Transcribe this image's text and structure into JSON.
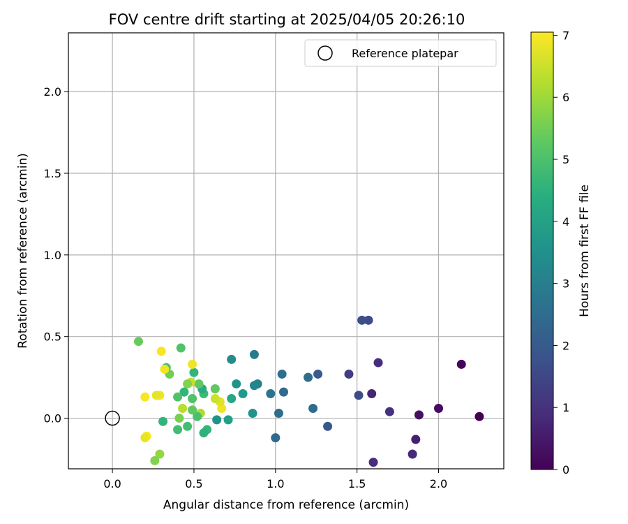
{
  "chart_data": {
    "type": "scatter",
    "title": "FOV centre drift starting at 2025/04/05 20:26:10",
    "xlabel": "Angular distance from reference (arcmin)",
    "ylabel": "Rotation from reference (arcmin)",
    "xlim": [
      -0.27,
      2.4
    ],
    "ylim": [
      -0.31,
      2.36
    ],
    "xticks": [
      0.0,
      0.5,
      1.0,
      1.5,
      2.0
    ],
    "xtick_labels": [
      "0.0",
      "0.5",
      "1.0",
      "1.5",
      "2.0"
    ],
    "yticks": [
      0.0,
      0.5,
      1.0,
      1.5,
      2.0
    ],
    "ytick_labels": [
      "0.0",
      "0.5",
      "1.0",
      "1.5",
      "2.0"
    ],
    "grid": true,
    "legend": {
      "placement": "top-right",
      "entries": [
        "Reference platepar"
      ]
    },
    "reference_point": {
      "x": 0.0,
      "y": 0.0,
      "label": "Reference platepar"
    },
    "colorbar": {
      "label": "Hours from first FF file",
      "colormap": "viridis",
      "range": [
        0,
        7.05
      ],
      "ticks": [
        0,
        1,
        2,
        3,
        4,
        5,
        6,
        7
      ],
      "tick_labels": [
        "0",
        "1",
        "2",
        "3",
        "4",
        "5",
        "6",
        "7"
      ]
    },
    "points": [
      {
        "x": 2.25,
        "y": 0.01,
        "hours": 0.0
      },
      {
        "x": 2.14,
        "y": 0.33,
        "hours": 0.1
      },
      {
        "x": 2.0,
        "y": 0.06,
        "hours": 0.2
      },
      {
        "x": 1.88,
        "y": 0.02,
        "hours": 0.3
      },
      {
        "x": 1.86,
        "y": -0.13,
        "hours": 0.6
      },
      {
        "x": 1.84,
        "y": -0.22,
        "hours": 0.8
      },
      {
        "x": 1.7,
        "y": 0.04,
        "hours": 1.0
      },
      {
        "x": 1.63,
        "y": 0.34,
        "hours": 0.9
      },
      {
        "x": 1.6,
        "y": -0.27,
        "hours": 0.9
      },
      {
        "x": 1.59,
        "y": 0.15,
        "hours": 0.7
      },
      {
        "x": 1.57,
        "y": 0.6,
        "hours": 1.6
      },
      {
        "x": 1.53,
        "y": 0.6,
        "hours": 1.7
      },
      {
        "x": 1.51,
        "y": 0.14,
        "hours": 1.6
      },
      {
        "x": 1.45,
        "y": 0.27,
        "hours": 1.3
      },
      {
        "x": 1.32,
        "y": -0.05,
        "hours": 1.9
      },
      {
        "x": 1.26,
        "y": 0.27,
        "hours": 2.0
      },
      {
        "x": 1.23,
        "y": 0.06,
        "hours": 2.4
      },
      {
        "x": 1.2,
        "y": 0.25,
        "hours": 2.5
      },
      {
        "x": 1.05,
        "y": 0.16,
        "hours": 2.4
      },
      {
        "x": 1.04,
        "y": 0.27,
        "hours": 2.6
      },
      {
        "x": 1.02,
        "y": 0.03,
        "hours": 2.5
      },
      {
        "x": 1.0,
        "y": -0.12,
        "hours": 2.4
      },
      {
        "x": 0.97,
        "y": 0.15,
        "hours": 2.7
      },
      {
        "x": 0.89,
        "y": 0.21,
        "hours": 3.1
      },
      {
        "x": 0.87,
        "y": 0.2,
        "hours": 3.2
      },
      {
        "x": 0.87,
        "y": 0.39,
        "hours": 2.9
      },
      {
        "x": 0.86,
        "y": 0.03,
        "hours": 3.6
      },
      {
        "x": 0.8,
        "y": 0.15,
        "hours": 3.8
      },
      {
        "x": 0.76,
        "y": 0.21,
        "hours": 3.6
      },
      {
        "x": 0.73,
        "y": 0.36,
        "hours": 3.4
      },
      {
        "x": 0.73,
        "y": 0.12,
        "hours": 4.2
      },
      {
        "x": 0.71,
        "y": -0.01,
        "hours": 4.0
      },
      {
        "x": 0.67,
        "y": 0.06,
        "hours": 6.9
      },
      {
        "x": 0.66,
        "y": 0.1,
        "hours": 6.7
      },
      {
        "x": 0.64,
        "y": -0.01,
        "hours": 3.6
      },
      {
        "x": 0.63,
        "y": 0.18,
        "hours": 5.3
      },
      {
        "x": 0.63,
        "y": 0.12,
        "hours": 6.5
      },
      {
        "x": 0.58,
        "y": -0.07,
        "hours": 4.7
      },
      {
        "x": 0.56,
        "y": 0.15,
        "hours": 4.8
      },
      {
        "x": 0.56,
        "y": -0.09,
        "hours": 4.5
      },
      {
        "x": 0.55,
        "y": 0.18,
        "hours": 4.3
      },
      {
        "x": 0.54,
        "y": 0.03,
        "hours": 6.2
      },
      {
        "x": 0.53,
        "y": 0.21,
        "hours": 5.3
      },
      {
        "x": 0.52,
        "y": 0.01,
        "hours": 5.0
      },
      {
        "x": 0.5,
        "y": 0.28,
        "hours": 4.6
      },
      {
        "x": 0.49,
        "y": 0.12,
        "hours": 5.1
      },
      {
        "x": 0.49,
        "y": 0.05,
        "hours": 5.3
      },
      {
        "x": 0.49,
        "y": 0.33,
        "hours": 6.9
      },
      {
        "x": 0.48,
        "y": 0.22,
        "hours": 6.4
      },
      {
        "x": 0.46,
        "y": -0.05,
        "hours": 4.9
      },
      {
        "x": 0.46,
        "y": 0.21,
        "hours": 5.7
      },
      {
        "x": 0.44,
        "y": 0.16,
        "hours": 4.6
      },
      {
        "x": 0.43,
        "y": 0.06,
        "hours": 6.3
      },
      {
        "x": 0.42,
        "y": 0.43,
        "hours": 5.1
      },
      {
        "x": 0.41,
        "y": 0.0,
        "hours": 5.6
      },
      {
        "x": 0.4,
        "y": -0.07,
        "hours": 4.9
      },
      {
        "x": 0.4,
        "y": 0.13,
        "hours": 5.1
      },
      {
        "x": 0.35,
        "y": 0.27,
        "hours": 5.5
      },
      {
        "x": 0.33,
        "y": 0.31,
        "hours": 5.0
      },
      {
        "x": 0.32,
        "y": 0.3,
        "hours": 6.9
      },
      {
        "x": 0.31,
        "y": -0.02,
        "hours": 4.6
      },
      {
        "x": 0.3,
        "y": 0.41,
        "hours": 7.0
      },
      {
        "x": 0.29,
        "y": -0.22,
        "hours": 5.9
      },
      {
        "x": 0.29,
        "y": 0.14,
        "hours": 6.9
      },
      {
        "x": 0.27,
        "y": 0.14,
        "hours": 6.8
      },
      {
        "x": 0.26,
        "y": -0.26,
        "hours": 5.7
      },
      {
        "x": 0.21,
        "y": -0.11,
        "hours": 7.0
      },
      {
        "x": 0.2,
        "y": -0.12,
        "hours": 6.8
      },
      {
        "x": 0.2,
        "y": 0.13,
        "hours": 7.0
      },
      {
        "x": 0.16,
        "y": 0.47,
        "hours": 5.4
      }
    ]
  }
}
